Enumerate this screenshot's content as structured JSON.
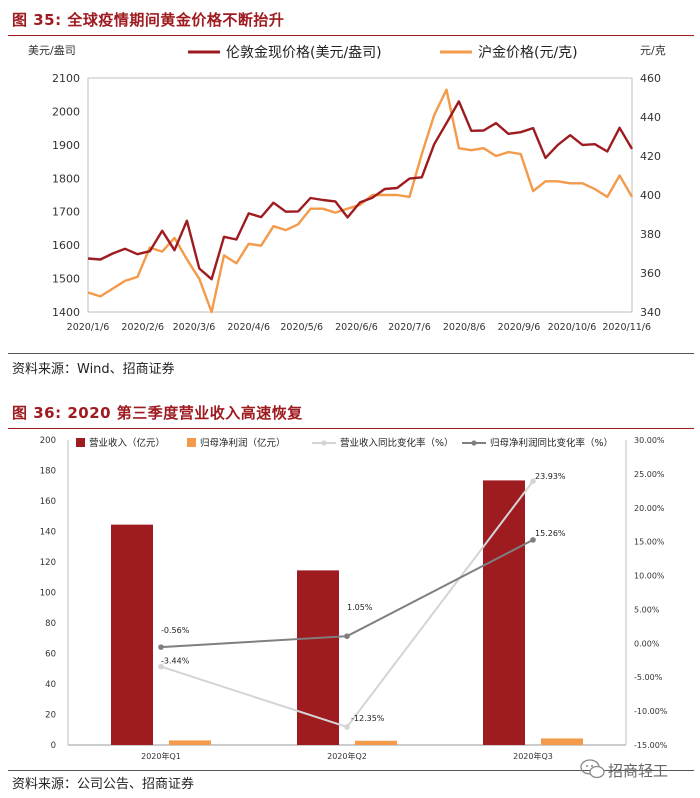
{
  "figures": {
    "fig35": {
      "title": "图 35:  全球疫情期间黄金价格不断抬升",
      "source": "资料来源：Wind、招商证券"
    },
    "fig36": {
      "title": "图 36:  2020 第三季度营业收入高速恢复",
      "source": "资料来源：公司公告、招商证券"
    }
  },
  "watermark": {
    "text": "招商轻工"
  },
  "colors": {
    "red": "#9e1b20",
    "orange": "#f39a4b",
    "grey": "#7f7f7f",
    "lightgrey": "#d4d4d4"
  },
  "chart_data": [
    {
      "type": "line",
      "left_axis_label": "美元/盎司",
      "right_axis_label": "元/克",
      "x_tick_labels": [
        "2020/1/6",
        "2020/2/6",
        "2020/3/6",
        "2020/4/6",
        "2020/5/6",
        "2020/6/6",
        "2020/7/6",
        "2020/8/6",
        "2020/9/6",
        "2020/10/6",
        "2020/11/6"
      ],
      "ylim_left": [
        1400,
        2100
      ],
      "yticks_left": [
        1400,
        1500,
        1600,
        1700,
        1800,
        1900,
        2000,
        2100
      ],
      "ylim_right": [
        340,
        460
      ],
      "yticks_right": [
        340,
        360,
        380,
        400,
        420,
        440,
        460
      ],
      "series": [
        {
          "name": "伦敦金现价格(美元/盎司)",
          "axis": "left",
          "color": "#9e1b20",
          "x": [
            "2020-01-06",
            "2020-01-13",
            "2020-01-20",
            "2020-01-27",
            "2020-02-03",
            "2020-02-10",
            "2020-02-17",
            "2020-02-24",
            "2020-03-02",
            "2020-03-09",
            "2020-03-16",
            "2020-03-23",
            "2020-03-30",
            "2020-04-06",
            "2020-04-13",
            "2020-04-20",
            "2020-04-27",
            "2020-05-04",
            "2020-05-11",
            "2020-05-18",
            "2020-05-25",
            "2020-06-01",
            "2020-06-08",
            "2020-06-15",
            "2020-06-22",
            "2020-06-29",
            "2020-07-06",
            "2020-07-13",
            "2020-07-20",
            "2020-07-27",
            "2020-08-03",
            "2020-08-10",
            "2020-08-17",
            "2020-08-24",
            "2020-08-31",
            "2020-09-07",
            "2020-09-14",
            "2020-09-21",
            "2020-09-28",
            "2020-10-05",
            "2020-10-12",
            "2020-10-19",
            "2020-10-26",
            "2020-11-02",
            "2020-11-09"
          ],
          "values": [
            1560,
            1557,
            1575,
            1589,
            1573,
            1582,
            1643,
            1585,
            1673,
            1530,
            1498,
            1625,
            1617,
            1695,
            1684,
            1727,
            1700,
            1701,
            1741,
            1735,
            1731,
            1683,
            1728,
            1742,
            1768,
            1771,
            1799,
            1803,
            1902,
            1965,
            2030,
            1942,
            1943,
            1965,
            1933,
            1938,
            1950,
            1861,
            1900,
            1929,
            1900,
            1902,
            1880,
            1951,
            1888
          ]
        },
        {
          "name": "沪金价格(元/克)",
          "axis": "right",
          "color": "#f39a4b",
          "x": [
            "2020-01-06",
            "2020-01-13",
            "2020-01-20",
            "2020-01-27",
            "2020-02-03",
            "2020-02-10",
            "2020-02-17",
            "2020-02-24",
            "2020-03-02",
            "2020-03-09",
            "2020-03-16",
            "2020-03-23",
            "2020-03-30",
            "2020-04-06",
            "2020-04-13",
            "2020-04-20",
            "2020-04-27",
            "2020-05-04",
            "2020-05-11",
            "2020-05-18",
            "2020-05-25",
            "2020-06-01",
            "2020-06-08",
            "2020-06-15",
            "2020-06-22",
            "2020-06-29",
            "2020-07-06",
            "2020-07-13",
            "2020-07-20",
            "2020-07-27",
            "2020-08-03",
            "2020-08-10",
            "2020-08-17",
            "2020-08-24",
            "2020-08-31",
            "2020-09-07",
            "2020-09-14",
            "2020-09-21",
            "2020-09-28",
            "2020-10-05",
            "2020-10-12",
            "2020-10-19",
            "2020-10-26",
            "2020-11-02",
            "2020-11-09"
          ],
          "values": [
            350,
            348,
            352,
            356,
            358,
            373,
            371,
            378,
            367,
            357,
            340,
            369,
            365,
            375,
            374,
            384,
            382,
            385,
            393,
            393,
            391,
            393,
            395,
            400,
            400,
            400,
            399,
            421,
            441,
            454,
            424,
            423,
            424,
            420,
            422,
            421,
            402,
            407,
            407,
            406,
            406,
            403,
            399,
            410,
            399
          ]
        }
      ]
    },
    {
      "type": "bar",
      "categories": [
        "2020年Q1",
        "2020年Q2",
        "2020年Q3"
      ],
      "ylim_left": [
        0,
        200
      ],
      "yticks_left": [
        0,
        20,
        40,
        60,
        80,
        100,
        120,
        140,
        160,
        180,
        200
      ],
      "ylim_right": [
        -15,
        30
      ],
      "yticks_right": [
        "-15.00%",
        "-10.00%",
        "-5.00%",
        "0.00%",
        "5.00%",
        "10.00%",
        "15.00%",
        "20.00%",
        "25.00%",
        "30.00%"
      ],
      "series": [
        {
          "name": "营业收入（亿元）",
          "kind": "bar",
          "axis": "left",
          "color": "#9e1b20",
          "values": [
            144.5,
            114.5,
            173.5
          ]
        },
        {
          "name": "归母净利润（亿元）",
          "kind": "bar",
          "axis": "left",
          "color": "#f39a4b",
          "values": [
            3,
            2.8,
            4.3
          ]
        },
        {
          "name": "营业收入同比变化率（%）",
          "kind": "line",
          "axis": "right",
          "color": "#d4d4d4",
          "values": [
            -3.44,
            -12.35,
            23.93
          ],
          "labels": [
            "-3.44%",
            "-12.35%",
            "23.93%"
          ]
        },
        {
          "name": "归母净利润同比变化率（%）",
          "kind": "line",
          "axis": "right",
          "color": "#7f7f7f",
          "values": [
            -0.56,
            1.05,
            15.26
          ],
          "labels": [
            "-0.56%",
            "1.05%",
            "15.26%"
          ]
        }
      ]
    }
  ]
}
